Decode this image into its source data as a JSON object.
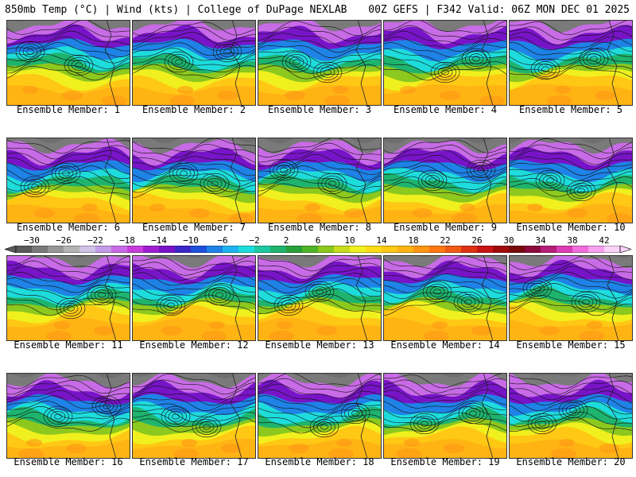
{
  "header": {
    "left": "850mb Temp (°C) | Wind (kts) | College of DuPage NEXLAB",
    "right": "00Z GEFS | F342 Valid: 06Z MON DEC 01 2025"
  },
  "members": [
    {
      "label": "Ensemble Member: 1"
    },
    {
      "label": "Ensemble Member: 2"
    },
    {
      "label": "Ensemble Member: 3"
    },
    {
      "label": "Ensemble Member: 4"
    },
    {
      "label": "Ensemble Member: 5"
    },
    {
      "label": "Ensemble Member: 6"
    },
    {
      "label": "Ensemble Member: 7"
    },
    {
      "label": "Ensemble Member: 8"
    },
    {
      "label": "Ensemble Member: 9"
    },
    {
      "label": "Ensemble Member: 10"
    },
    {
      "label": "Ensemble Member: 11"
    },
    {
      "label": "Ensemble Member: 12"
    },
    {
      "label": "Ensemble Member: 13"
    },
    {
      "label": "Ensemble Member: 14"
    },
    {
      "label": "Ensemble Member: 15"
    },
    {
      "label": "Ensemble Member: 16"
    },
    {
      "label": "Ensemble Member: 17"
    },
    {
      "label": "Ensemble Member: 18"
    },
    {
      "label": "Ensemble Member: 19"
    },
    {
      "label": "Ensemble Member: 20"
    }
  ],
  "colorbar": {
    "tick_labels": [
      "−30",
      "−26",
      "−22",
      "−18",
      "−14",
      "−10",
      "−6",
      "−2",
      "2",
      "6",
      "10",
      "14",
      "18",
      "22",
      "26",
      "30",
      "34",
      "38",
      "42"
    ],
    "colors": [
      "#5a5a5a",
      "#7a7a7a",
      "#979797",
      "#b4b4b4",
      "#cfc3e6",
      "#c49ce8",
      "#c86be6",
      "#c83cdc",
      "#a01ed2",
      "#7814c8",
      "#3c28c8",
      "#1e50dc",
      "#1e82e6",
      "#1eb4f0",
      "#1edcdc",
      "#1ec8a0",
      "#1eb46e",
      "#28a03c",
      "#50b428",
      "#8cc81e",
      "#c8dc1e",
      "#f0f01e",
      "#ffdc14",
      "#ffc814",
      "#ffb414",
      "#ff9614",
      "#ff7814",
      "#f05a14",
      "#dc3214",
      "#c81414",
      "#a00a0a",
      "#780a0a",
      "#8c0a3c",
      "#b41e78",
      "#dc3cb4",
      "#f06edc",
      "#f8a0f0",
      "#fcd2f8"
    ]
  }
}
